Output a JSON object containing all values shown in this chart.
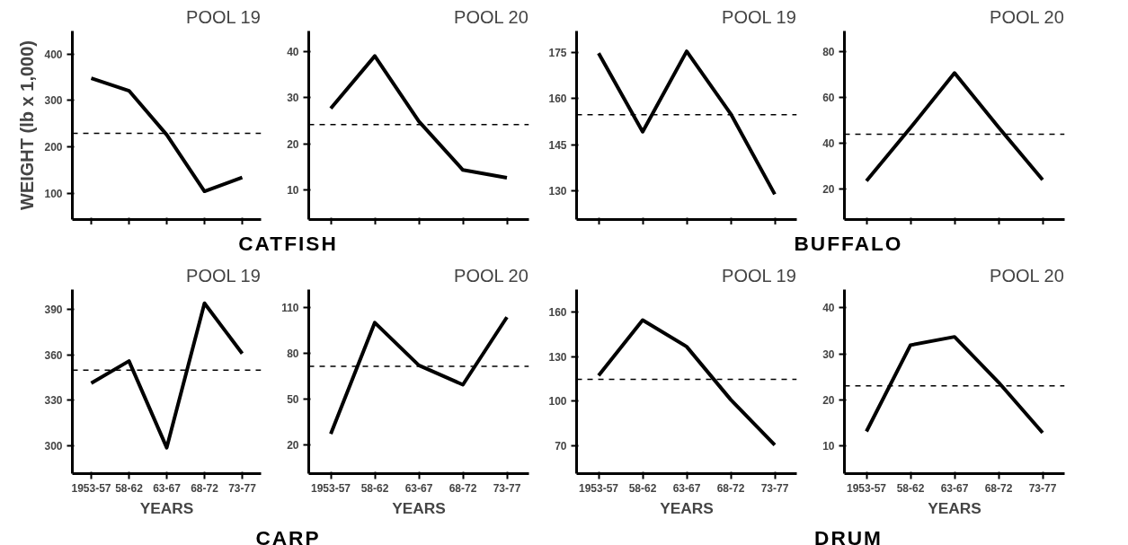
{
  "chart_data": [
    {
      "type": "line",
      "title": "POOL 19",
      "ylabel": "WEIGHT (lb x 1,000)",
      "annotations": [
        "CATFISH"
      ],
      "categories": [
        null,
        null,
        null,
        null,
        null
      ],
      "series": [
        {
          "color": "#000000",
          "values": [
            348,
            321,
            226,
            104,
            134
          ]
        }
      ],
      "ylim": [
        43,
        450
      ],
      "yticks": [
        100,
        200,
        300,
        400
      ],
      "ref_lines": [
        {
          "axis": "y",
          "value": 229,
          "color": "#000000",
          "line_style": "dashed"
        }
      ],
      "tick_labels": "y",
      "grid": false,
      "line_style": "solid"
    },
    {
      "type": "line",
      "title": "POOL 20",
      "categories": [
        null,
        null,
        null,
        null,
        null
      ],
      "series": [
        {
          "color": "#000000",
          "values": [
            27.7,
            39,
            24.9,
            14.4,
            12.7
          ]
        }
      ],
      "ylim": [
        3.7,
        44.4
      ],
      "yticks": [
        10,
        20,
        30,
        40
      ],
      "ref_lines": [
        {
          "axis": "y",
          "value": 24.2,
          "color": "#000000",
          "line_style": "dashed"
        }
      ],
      "tick_labels": "y",
      "grid": false,
      "line_style": "solid"
    },
    {
      "type": "line",
      "title": "POOL 19",
      "annotations": [
        "BUFFALO"
      ],
      "categories": [
        null,
        null,
        null,
        null,
        null
      ],
      "series": [
        {
          "color": "#000000",
          "values": [
            174.8,
            149.3,
            175.4,
            155.1,
            129
          ]
        }
      ],
      "ylim": [
        120.8,
        182
      ],
      "yticks": [
        130,
        145,
        160,
        175
      ],
      "ref_lines": [
        {
          "axis": "y",
          "value": 154.8,
          "color": "#000000",
          "line_style": "dashed"
        }
      ],
      "tick_labels": "y",
      "grid": false,
      "line_style": "solid"
    },
    {
      "type": "line",
      "title": "POOL 20",
      "categories": [
        null,
        null,
        null,
        null,
        null
      ],
      "series": [
        {
          "color": "#000000",
          "values": [
            23.6,
            46.8,
            70.7,
            47,
            24.1
          ]
        }
      ],
      "ylim": [
        6.8,
        89
      ],
      "yticks": [
        20,
        40,
        60,
        80
      ],
      "ref_lines": [
        {
          "axis": "y",
          "value": 44,
          "color": "#000000",
          "line_style": "dashed"
        }
      ],
      "tick_labels": "y",
      "grid": false,
      "line_style": "solid"
    },
    {
      "type": "line",
      "title": "POOL 19",
      "xlabel": "YEARS",
      "annotations": [
        "CARP"
      ],
      "categories": [
        "1953-57",
        "58-62",
        "63-67",
        "68-72",
        "73-77"
      ],
      "series": [
        {
          "color": "#000000",
          "values": [
            341.3,
            355.9,
            298.8,
            394,
            360.8
          ]
        }
      ],
      "ylim": [
        281.7,
        403
      ],
      "yticks": [
        300,
        330,
        360,
        390
      ],
      "ref_lines": [
        {
          "axis": "y",
          "value": 349.9,
          "color": "#000000",
          "line_style": "dashed"
        }
      ],
      "grid": false,
      "line_style": "solid"
    },
    {
      "type": "line",
      "title": "POOL 20",
      "xlabel": "YEARS",
      "categories": [
        "1953-57",
        "58-62",
        "63-67",
        "68-72",
        "73-77"
      ],
      "series": [
        {
          "color": "#000000",
          "values": [
            27.3,
            100.3,
            72.3,
            59.6,
            103.9
          ]
        }
      ],
      "ylim": [
        1.3,
        122
      ],
      "yticks": [
        20,
        50,
        80,
        110
      ],
      "ref_lines": [
        {
          "axis": "y",
          "value": 71.6,
          "color": "#000000",
          "line_style": "dashed"
        }
      ],
      "grid": false,
      "line_style": "solid"
    },
    {
      "type": "line",
      "title": "POOL 19",
      "xlabel": "YEARS",
      "annotations": [
        "DRUM"
      ],
      "categories": [
        "1953-57",
        "58-62",
        "63-67",
        "68-72",
        "73-77"
      ],
      "series": [
        {
          "color": "#000000",
          "values": [
            117.2,
            154.5,
            136.6,
            101,
            70.5
          ]
        }
      ],
      "ylim": [
        51.3,
        175
      ],
      "yticks": [
        70,
        100,
        130,
        160
      ],
      "ref_lines": [
        {
          "axis": "y",
          "value": 114.7,
          "color": "#000000",
          "line_style": "dashed"
        }
      ],
      "grid": false,
      "line_style": "solid"
    },
    {
      "type": "line",
      "title": "POOL 20",
      "xlabel": "YEARS",
      "categories": [
        "1953-57",
        "58-62",
        "63-67",
        "68-72",
        "73-77"
      ],
      "series": [
        {
          "color": "#000000",
          "values": [
            13.1,
            31.9,
            33.7,
            23.8,
            12.8
          ]
        }
      ],
      "ylim": [
        3.9,
        44
      ],
      "yticks": [
        10,
        20,
        30,
        40
      ],
      "ref_lines": [
        {
          "axis": "y",
          "value": 23,
          "color": "#000000",
          "line_style": "dashed"
        }
      ],
      "grid": false,
      "line_style": "solid"
    }
  ]
}
